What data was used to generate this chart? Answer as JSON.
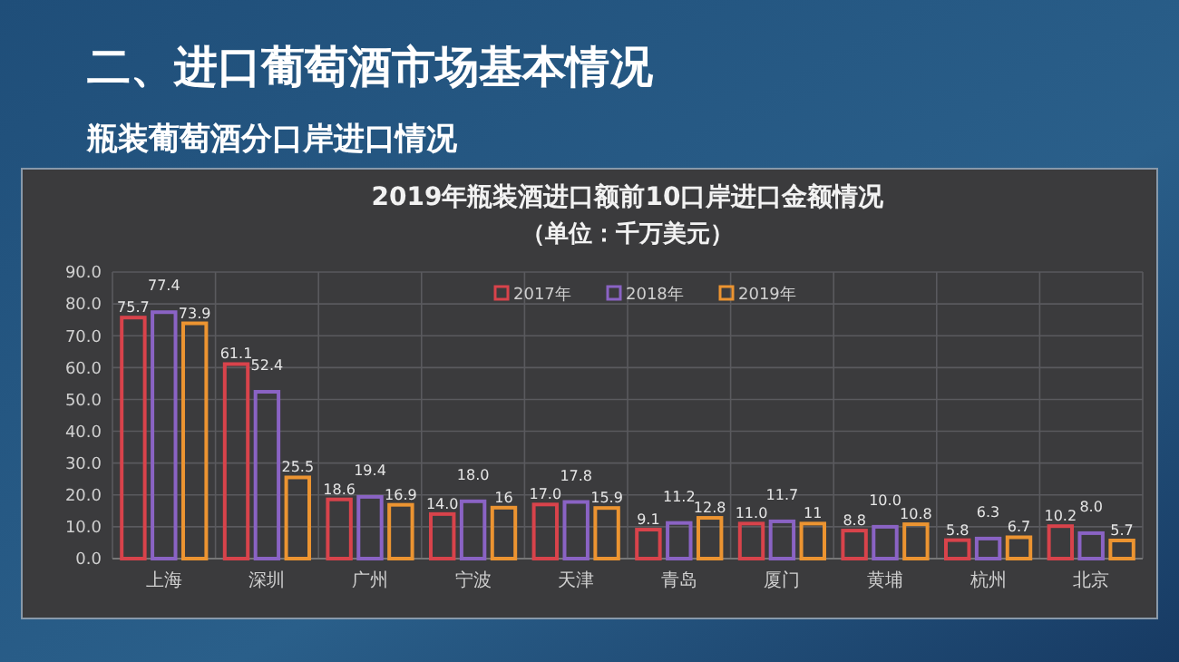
{
  "chart_data": {
    "type": "bar",
    "title": "二、进口葡萄酒市场基本情况",
    "subtitle": "瓶装葡萄酒分口岸进口情况",
    "annotations": [
      "2019年瓶装酒进口额前10口岸进口金额情况",
      "（单位：千万美元）"
    ],
    "categories": [
      "上海",
      "深圳",
      "广州",
      "宁波",
      "天津",
      "青岛",
      "厦门",
      "黄埔",
      "杭州",
      "北京"
    ],
    "series": [
      {
        "name": "2017年",
        "color": "#d8434b",
        "values": [
          75.7,
          61.1,
          18.6,
          14.0,
          17.0,
          9.1,
          11.0,
          8.8,
          5.8,
          10.2
        ],
        "value_labels": [
          "75.7",
          "61.1",
          "18.6",
          "14.0",
          "17.0",
          "9.1",
          "11.0",
          "8.8",
          "5.8",
          "10.2"
        ]
      },
      {
        "name": "2018年",
        "color": "#8a63c4",
        "values": [
          77.4,
          52.4,
          19.4,
          18.0,
          17.8,
          11.2,
          11.7,
          10.0,
          6.3,
          8.0
        ],
        "value_labels": [
          "77.4",
          "52.4",
          "19.4",
          "18.0",
          "17.8",
          "11.2",
          "11.7",
          "10.0",
          "6.3",
          "8.0"
        ]
      },
      {
        "name": "2019年",
        "color": "#ec9431",
        "values": [
          73.9,
          25.5,
          16.9,
          16,
          15.9,
          12.8,
          11,
          10.8,
          6.7,
          5.7
        ],
        "value_labels": [
          "73.9",
          "25.5",
          "16.9",
          "16",
          "15.9",
          "12.8",
          "11",
          "10.8",
          "6.7",
          "5.7"
        ]
      }
    ],
    "ylim": [
      0,
      90
    ],
    "yticks": [
      {
        "value": 0,
        "label": "0.0"
      },
      {
        "value": 10,
        "label": "10.0"
      },
      {
        "value": 20,
        "label": "20.0"
      },
      {
        "value": 30,
        "label": "30.0"
      },
      {
        "value": 40,
        "label": "40.0"
      },
      {
        "value": 50,
        "label": "50.0"
      },
      {
        "value": 60,
        "label": "60.0"
      },
      {
        "value": 70,
        "label": "70.0"
      },
      {
        "value": 80,
        "label": "80.0"
      },
      {
        "value": 90,
        "label": "90.0"
      }
    ],
    "grid": true,
    "legend": "top"
  }
}
